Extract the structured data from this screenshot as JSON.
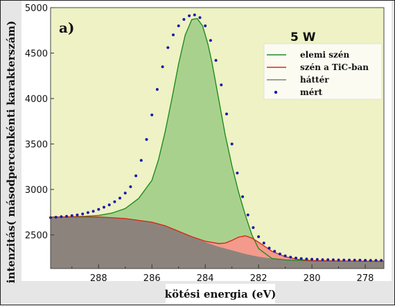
{
  "chart_data": {
    "type": "line",
    "panel_label": "a)",
    "annotation": "5 W",
    "title": "",
    "xlabel": "kötési energia (eV)",
    "ylabel": "intenzitás( másodpercenkénti karakterszám)",
    "xlim": [
      289.8,
      277.3
    ],
    "ylim": [
      2130,
      5000
    ],
    "x_reversed": true,
    "x_ticks": [
      288,
      286,
      284,
      282,
      280,
      278
    ],
    "y_ticks": [
      2500,
      3000,
      3500,
      4000,
      4500,
      5000
    ],
    "grid": false,
    "legend_position": "top-right",
    "series": [
      {
        "name": "elemi szén",
        "color": "#1e8c1e",
        "fill": "#a9d18e",
        "style": "line",
        "x": [
          289.8,
          289.0,
          288.5,
          288.0,
          287.5,
          287.0,
          286.5,
          286.0,
          285.75,
          285.5,
          285.25,
          285.0,
          284.75,
          284.5,
          284.3,
          284.1,
          283.9,
          283.75,
          283.5,
          283.25,
          283.0,
          282.75,
          282.5,
          282.25,
          282.0,
          281.5,
          281.0,
          280.0,
          279.0,
          278.0,
          277.3
        ],
        "y": [
          2695,
          2700,
          2705,
          2715,
          2740,
          2790,
          2900,
          3100,
          3330,
          3640,
          4000,
          4380,
          4700,
          4870,
          4880,
          4800,
          4600,
          4400,
          4000,
          3600,
          3260,
          2970,
          2720,
          2500,
          2350,
          2240,
          2225,
          2215,
          2212,
          2211,
          2210
        ]
      },
      {
        "name": "szén a TiC-ban",
        "color": "#d42a1a",
        "fill": "#f39a8c",
        "style": "line",
        "x": [
          289.8,
          289.0,
          288.0,
          287.0,
          286.0,
          285.5,
          285.0,
          284.5,
          284.0,
          283.5,
          283.25,
          283.0,
          282.75,
          282.5,
          282.25,
          282.0,
          281.75,
          281.5,
          281.0,
          280.5,
          280.0,
          279.0,
          278.0,
          277.3
        ],
        "y": [
          2695,
          2698,
          2697,
          2680,
          2640,
          2600,
          2540,
          2480,
          2430,
          2405,
          2410,
          2440,
          2475,
          2490,
          2465,
          2420,
          2370,
          2320,
          2260,
          2230,
          2218,
          2213,
          2211,
          2210
        ]
      },
      {
        "name": "háttér",
        "color": "#7f7f7f",
        "fill": "#8c847c",
        "style": "area",
        "x": [
          289.8,
          289.0,
          288.0,
          287.0,
          286.0,
          285.5,
          285.0,
          284.5,
          284.0,
          283.5,
          283.0,
          282.5,
          282.0,
          281.5,
          281.0,
          280.5,
          280.0,
          279.0,
          278.0,
          277.3
        ],
        "y": [
          2695,
          2698,
          2697,
          2680,
          2640,
          2600,
          2540,
          2480,
          2420,
          2370,
          2330,
          2290,
          2260,
          2240,
          2228,
          2220,
          2215,
          2212,
          2211,
          2210
        ]
      },
      {
        "name": "mért",
        "color": "#1a1aaa",
        "style": "points",
        "x": [
          289.8,
          289.6,
          289.4,
          289.2,
          289.0,
          288.8,
          288.6,
          288.4,
          288.2,
          288.0,
          287.8,
          287.6,
          287.4,
          287.2,
          287.0,
          286.8,
          286.6,
          286.4,
          286.2,
          286.0,
          285.8,
          285.6,
          285.4,
          285.2,
          285.0,
          284.8,
          284.6,
          284.4,
          284.2,
          284.0,
          283.8,
          283.6,
          283.4,
          283.2,
          283.0,
          282.8,
          282.6,
          282.4,
          282.2,
          282.0,
          281.8,
          281.6,
          281.4,
          281.2,
          281.0,
          280.8,
          280.6,
          280.4,
          280.2,
          280.0,
          279.8,
          279.6,
          279.4,
          279.2,
          279.0,
          278.8,
          278.6,
          278.4,
          278.2,
          278.0,
          277.8,
          277.6,
          277.4
        ],
        "y": [
          2690,
          2695,
          2700,
          2705,
          2712,
          2720,
          2730,
          2745,
          2760,
          2780,
          2805,
          2830,
          2865,
          2905,
          2960,
          3030,
          3150,
          3320,
          3550,
          3820,
          4100,
          4350,
          4560,
          4700,
          4800,
          4870,
          4910,
          4920,
          4890,
          4800,
          4640,
          4420,
          4150,
          3830,
          3500,
          3180,
          2920,
          2720,
          2580,
          2480,
          2410,
          2355,
          2320,
          2290,
          2270,
          2255,
          2245,
          2240,
          2235,
          2232,
          2230,
          2228,
          2227,
          2226,
          2225,
          2224,
          2223,
          2222,
          2222,
          2221,
          2220,
          2220,
          2219
        ]
      }
    ]
  }
}
